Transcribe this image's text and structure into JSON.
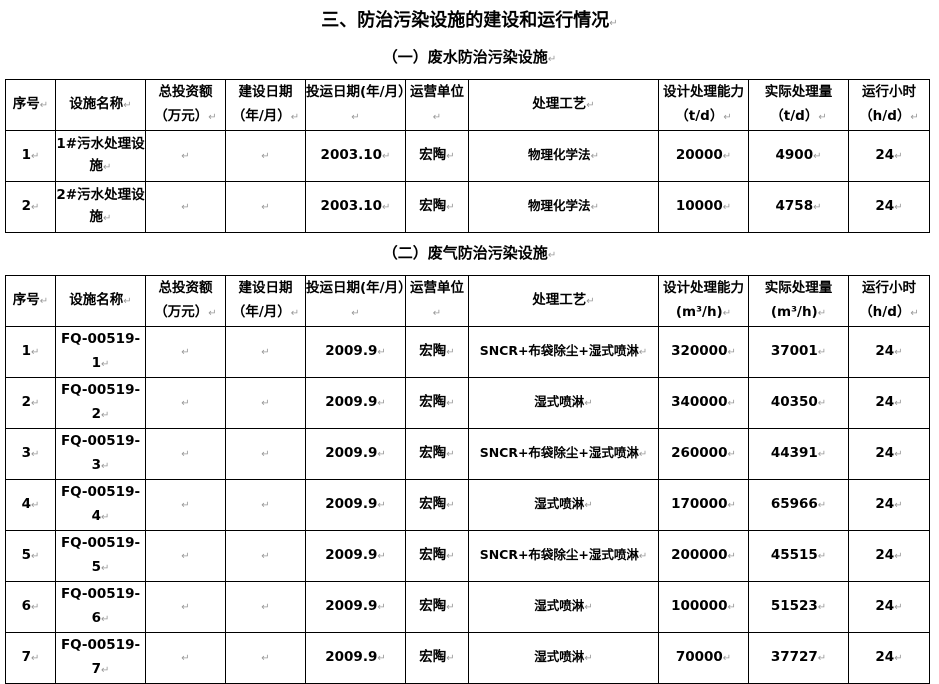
{
  "title": "三、防治污染设施的建设和运行情况",
  "section1": {
    "title": "（一）废水防治污染设施",
    "headers": [
      "序号",
      "设施名称",
      "总投资额（万元）",
      "建设日期（年/月）",
      "投运日期(年/月）",
      "运营单位",
      "处理工艺",
      "设计处理能力（t/d）",
      "实际处理量（t/d）",
      "运行小时（h/d）"
    ],
    "rows": [
      [
        "1",
        "1#污水处理设施",
        "",
        "",
        "2003.10",
        "宏陶",
        "物理化学法",
        "20000",
        "4900",
        "24"
      ],
      [
        "2",
        "2#污水处理设施",
        "",
        "",
        "2003.10",
        "宏陶",
        "物理化学法",
        "10000",
        "4758",
        "24"
      ]
    ]
  },
  "section2": {
    "title": "（二）废气防治污染设施",
    "headers": [
      "序号",
      "设施名称",
      "总投资额（万元）",
      "建设日期（年/月）",
      "投运日期(年/月）",
      "运营单位",
      "处理工艺",
      "设计处理能力(m³/h)",
      "实际处理量(m³/h)",
      "运行小时（h/d）"
    ],
    "rows": [
      [
        "1",
        "FQ-00519-1",
        "",
        "",
        "2009.9",
        "宏陶",
        "SNCR+布袋除尘+湿式喷淋",
        "320000",
        "37001",
        "24"
      ],
      [
        "2",
        "FQ-00519-2",
        "",
        "",
        "2009.9",
        "宏陶",
        "湿式喷淋",
        "340000",
        "40350",
        "24"
      ],
      [
        "3",
        "FQ-00519-3",
        "",
        "",
        "2009.9",
        "宏陶",
        "SNCR+布袋除尘+湿式喷淋",
        "260000",
        "44391",
        "24"
      ],
      [
        "4",
        "FQ-00519-4",
        "",
        "",
        "2009.9",
        "宏陶",
        "湿式喷淋",
        "170000",
        "65966",
        "24"
      ],
      [
        "5",
        "FQ-00519-5",
        "",
        "",
        "2009.9",
        "宏陶",
        "SNCR+布袋除尘+湿式喷淋",
        "200000",
        "45515",
        "24"
      ],
      [
        "6",
        "FQ-00519-6",
        "",
        "",
        "2009.9",
        "宏陶",
        "湿式喷淋",
        "100000",
        "51523",
        "24"
      ],
      [
        "7",
        "FQ-00519-7",
        "",
        "",
        "2009.9",
        "宏陶",
        "湿式喷淋",
        "70000",
        "37727",
        "24"
      ]
    ]
  }
}
